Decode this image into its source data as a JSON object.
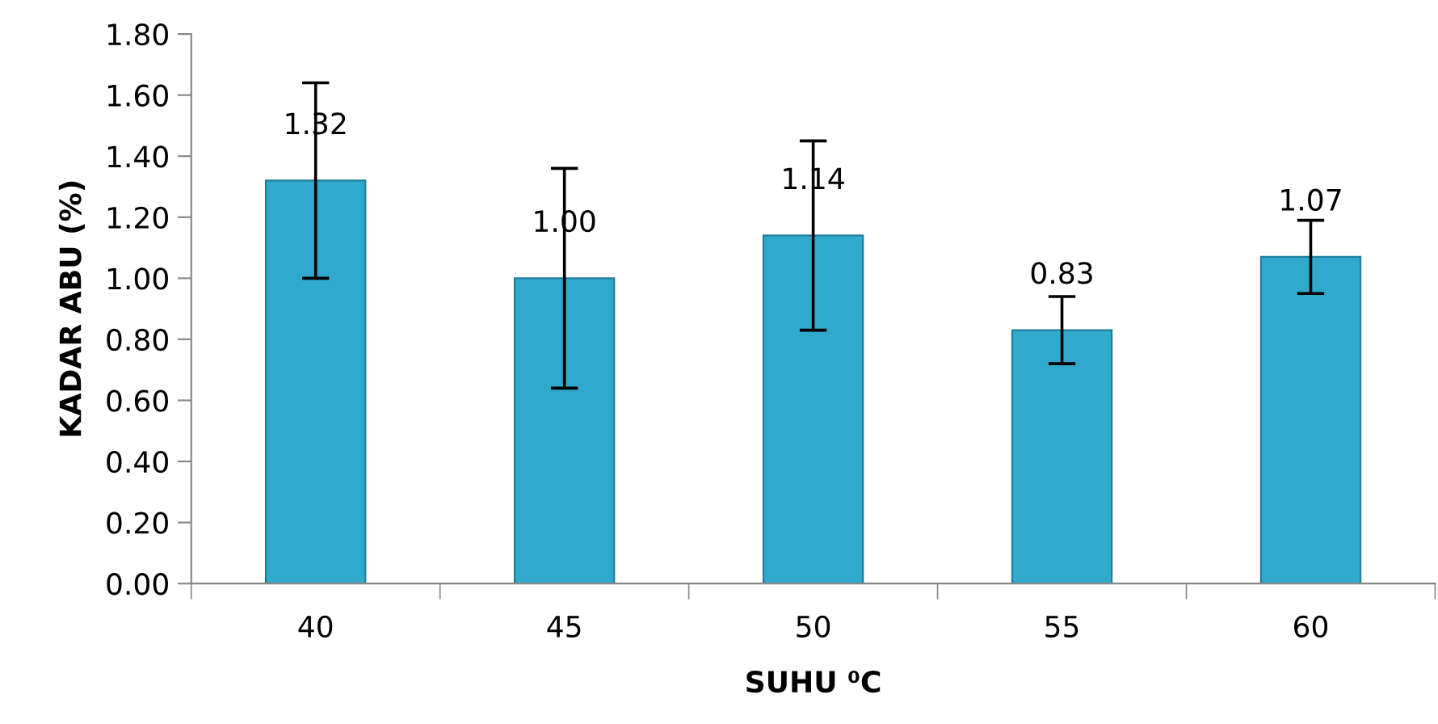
{
  "chart_data": {
    "type": "bar",
    "xlabel": "SUHU ⁰C",
    "ylabel": "KADAR ABU (%)",
    "categories": [
      "40",
      "45",
      "50",
      "55",
      "60"
    ],
    "values": [
      1.32,
      1.0,
      1.14,
      0.83,
      1.07
    ],
    "errors": [
      0.32,
      0.36,
      0.31,
      0.11,
      0.12
    ],
    "color": "#31a9cc",
    "ylim": [
      0,
      1.8
    ],
    "yticks": [
      {
        "value": 0,
        "label": "0.00"
      },
      {
        "value": 0.2,
        "label": "0.20"
      },
      {
        "value": 0.4,
        "label": "0.40"
      },
      {
        "value": 0.6,
        "label": "0.60"
      },
      {
        "value": 0.8,
        "label": "0.80"
      },
      {
        "value": 1.0,
        "label": "1.00"
      },
      {
        "value": 1.2,
        "label": "1.20"
      },
      {
        "value": 1.4,
        "label": "1.40"
      },
      {
        "value": 1.6,
        "label": "1.60"
      },
      {
        "value": 1.8,
        "label": "1.80"
      }
    ],
    "value_labels": [
      "1.32",
      "1.00",
      "1.14",
      "0.83",
      "1.07"
    ],
    "grid": false
  }
}
